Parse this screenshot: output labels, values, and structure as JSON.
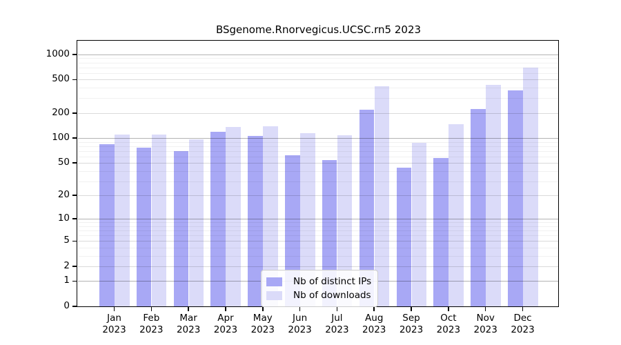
{
  "chart_data": {
    "type": "bar",
    "title": "BSgenome.Rnorvegicus.UCSC.rn5 2023",
    "categories": [
      "Jan",
      "Feb",
      "Mar",
      "Apr",
      "May",
      "Jun",
      "Jul",
      "Aug",
      "Sep",
      "Oct",
      "Nov",
      "Dec"
    ],
    "year_label": "2023",
    "series": [
      {
        "name": "Nb of distinct IPs",
        "color": "#a8a8f5",
        "values": [
          85,
          76,
          69,
          120,
          107,
          62,
          54,
          220,
          44,
          58,
          225,
          370
        ]
      },
      {
        "name": "Nb of downloads",
        "color": "#dbdbf9",
        "values": [
          110,
          110,
          96,
          135,
          138,
          115,
          108,
          420,
          87,
          147,
          430,
          690
        ]
      }
    ],
    "yscale": "log1p",
    "ylim": [
      0,
      1430
    ],
    "yticks": [
      0,
      1,
      2,
      5,
      10,
      20,
      50,
      100,
      200,
      500,
      1000
    ],
    "ytick_labels": [
      "0",
      "1",
      "2",
      "5",
      "10",
      "20",
      "50",
      "100",
      "200",
      "500",
      "1000"
    ],
    "minor_gridlines": [
      3,
      4,
      6,
      7,
      8,
      9,
      30,
      40,
      60,
      70,
      80,
      90,
      300,
      400,
      600,
      700,
      800,
      900
    ],
    "grid": true,
    "legend_position": "inside-bottom-center",
    "xlabel": "",
    "ylabel": ""
  }
}
